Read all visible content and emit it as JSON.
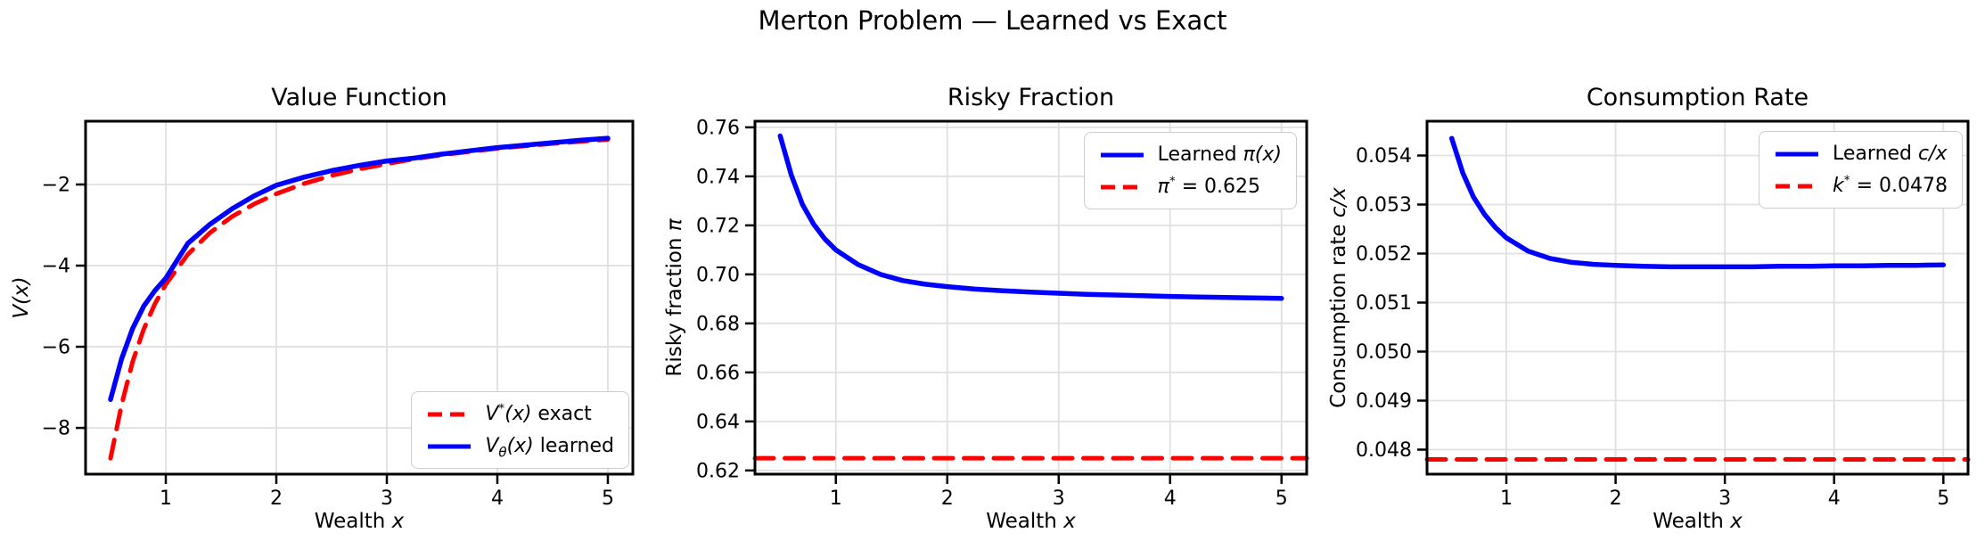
{
  "suptitle": "Merton Problem — Learned vs Exact",
  "colors": {
    "learned": "#0000ff",
    "reference": "#ff0000",
    "grid": "#e0e0e0",
    "frame": "#000000"
  },
  "chart_data": [
    {
      "type": "line",
      "title": "Value Function",
      "xlabel": "Wealth $x$",
      "ylabel": "$V(x)$",
      "xlim": [
        0.274,
        5.226
      ],
      "ylim": [
        -9.14,
        -0.44
      ],
      "xticks": [
        1,
        2,
        3,
        4,
        5
      ],
      "xtick_labels": [
        "1",
        "2",
        "3",
        "4",
        "5"
      ],
      "yticks": [
        -2,
        -4,
        -6,
        -8
      ],
      "ytick_labels": [
        "−2",
        "−4",
        "−6",
        "−8"
      ],
      "grid": true,
      "legend_position": "lower right",
      "series": [
        {
          "name": "$V^*(x)$ exact",
          "color": "#ff0000",
          "style": "dashed",
          "x": [
            0.5,
            0.6,
            0.7,
            0.8,
            0.9,
            1.0,
            1.2,
            1.4,
            1.6,
            1.8,
            2.0,
            2.25,
            2.5,
            2.75,
            3.0,
            3.25,
            3.5,
            3.75,
            4.0,
            4.25,
            4.5,
            4.75,
            5.0
          ],
          "y": [
            -8.75,
            -7.43,
            -6.37,
            -5.57,
            -4.95,
            -4.46,
            -3.72,
            -3.19,
            -2.79,
            -2.48,
            -2.23,
            -1.98,
            -1.78,
            -1.62,
            -1.49,
            -1.37,
            -1.27,
            -1.19,
            -1.11,
            -1.05,
            -0.99,
            -0.94,
            -0.89
          ]
        },
        {
          "name": "$V_θ(x)$ learned",
          "color": "#0000ff",
          "style": "solid",
          "x": [
            0.5,
            0.6,
            0.7,
            0.8,
            0.9,
            1.0,
            1.2,
            1.4,
            1.6,
            1.8,
            2.0,
            2.25,
            2.5,
            2.75,
            3.0,
            3.25,
            3.5,
            3.75,
            4.0,
            4.25,
            4.5,
            4.75,
            5.0
          ],
          "y": [
            -7.3,
            -6.3,
            -5.55,
            -5.0,
            -4.62,
            -4.31,
            -3.45,
            -2.98,
            -2.6,
            -2.28,
            -2.02,
            -1.82,
            -1.66,
            -1.53,
            -1.42,
            -1.35,
            -1.25,
            -1.17,
            -1.09,
            -1.03,
            -0.97,
            -0.91,
            -0.86
          ]
        }
      ]
    },
    {
      "type": "line",
      "title": "Risky Fraction",
      "xlabel": "Wealth $x$",
      "ylabel": "Risky fraction $π$",
      "xlim": [
        0.274,
        5.226
      ],
      "ylim": [
        0.6185,
        0.7625
      ],
      "xticks": [
        1,
        2,
        3,
        4,
        5
      ],
      "xtick_labels": [
        "1",
        "2",
        "3",
        "4",
        "5"
      ],
      "yticks": [
        0.62,
        0.64,
        0.66,
        0.68,
        0.7,
        0.72,
        0.74,
        0.76
      ],
      "ytick_labels": [
        "0.62",
        "0.64",
        "0.66",
        "0.68",
        "0.70",
        "0.72",
        "0.74",
        "0.76"
      ],
      "grid": true,
      "legend_position": "upper right",
      "series": [
        {
          "name": "Learned $π(x)$",
          "color": "#0000ff",
          "style": "solid",
          "x": [
            0.5,
            0.6,
            0.7,
            0.8,
            0.9,
            1.0,
            1.2,
            1.4,
            1.6,
            1.8,
            2.0,
            2.25,
            2.5,
            2.75,
            3.0,
            3.25,
            3.5,
            3.75,
            4.0,
            4.25,
            4.5,
            4.75,
            5.0
          ],
          "y": [
            0.7565,
            0.7405,
            0.7285,
            0.7205,
            0.7145,
            0.71,
            0.704,
            0.7,
            0.6975,
            0.696,
            0.695,
            0.694,
            0.6933,
            0.6928,
            0.6923,
            0.6919,
            0.6916,
            0.6913,
            0.691,
            0.6908,
            0.6906,
            0.6904,
            0.6902
          ]
        },
        {
          "name": "$π^*$ = 0.625",
          "color": "#ff0000",
          "style": "dashed",
          "hline": 0.625
        }
      ]
    },
    {
      "type": "line",
      "title": "Consumption Rate",
      "xlabel": "Wealth $x$",
      "ylabel": "Consumption rate $c/x$",
      "xlim": [
        0.274,
        5.226
      ],
      "ylim": [
        0.0475,
        0.0547
      ],
      "xticks": [
        1,
        2,
        3,
        4,
        5
      ],
      "xtick_labels": [
        "1",
        "2",
        "3",
        "4",
        "5"
      ],
      "yticks": [
        0.048,
        0.049,
        0.05,
        0.051,
        0.052,
        0.053,
        0.054
      ],
      "ytick_labels": [
        "0.048",
        "0.049",
        "0.050",
        "0.051",
        "0.052",
        "0.053",
        "0.054"
      ],
      "grid": true,
      "legend_position": "upper right",
      "series": [
        {
          "name": "Learned $c/x$",
          "color": "#0000ff",
          "style": "solid",
          "x": [
            0.5,
            0.6,
            0.7,
            0.8,
            0.9,
            1.0,
            1.2,
            1.4,
            1.6,
            1.8,
            2.0,
            2.25,
            2.5,
            2.75,
            3.0,
            3.25,
            3.5,
            3.75,
            4.0,
            4.25,
            4.5,
            4.75,
            5.0
          ],
          "y": [
            0.05435,
            0.05365,
            0.05315,
            0.0528,
            0.05253,
            0.05232,
            0.05205,
            0.0519,
            0.05182,
            0.05178,
            0.05176,
            0.05174,
            0.05173,
            0.05173,
            0.05173,
            0.05173,
            0.05174,
            0.05174,
            0.05175,
            0.05175,
            0.05176,
            0.05176,
            0.05177
          ]
        },
        {
          "name": "$k^*$ = 0.0478",
          "color": "#ff0000",
          "style": "dashed",
          "hline": 0.0478
        }
      ]
    }
  ]
}
